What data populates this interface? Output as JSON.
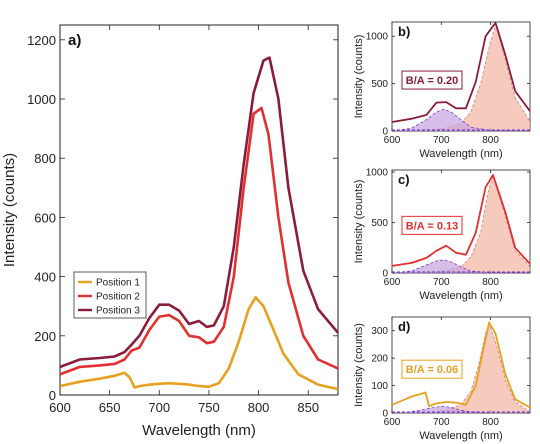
{
  "chart_data": [
    {
      "panel": "a)",
      "type": "line",
      "xlabel": "Wavelength (nm)",
      "ylabel": "Intensity (counts)",
      "xlim": [
        600,
        880
      ],
      "ylim": [
        0,
        1250
      ],
      "xticks": [
        600,
        650,
        700,
        750,
        800,
        850
      ],
      "yticks": [
        0,
        200,
        400,
        600,
        800,
        1000,
        1200
      ],
      "legend": "bottom-left",
      "series": [
        {
          "name": "Position 1",
          "color": "#e8a020",
          "x": [
            600,
            620,
            640,
            655,
            665,
            670,
            675,
            680,
            690,
            700,
            710,
            720,
            730,
            740,
            750,
            760,
            770,
            780,
            790,
            797,
            805,
            815,
            825,
            840,
            860,
            880
          ],
          "y": [
            30,
            45,
            55,
            65,
            75,
            60,
            25,
            30,
            35,
            38,
            40,
            38,
            35,
            30,
            28,
            40,
            90,
            180,
            290,
            330,
            300,
            220,
            140,
            70,
            35,
            20
          ]
        },
        {
          "name": "Position 2",
          "color": "#e03030",
          "x": [
            600,
            620,
            640,
            655,
            665,
            672,
            680,
            690,
            700,
            710,
            720,
            730,
            740,
            748,
            755,
            765,
            775,
            785,
            795,
            803,
            810,
            820,
            830,
            845,
            860,
            880
          ],
          "y": [
            70,
            95,
            100,
            105,
            120,
            150,
            160,
            220,
            265,
            270,
            250,
            200,
            195,
            175,
            180,
            230,
            400,
            700,
            950,
            970,
            880,
            600,
            380,
            200,
            120,
            90
          ]
        },
        {
          "name": "Position 3",
          "color": "#8b1c3a",
          "x": [
            600,
            620,
            640,
            655,
            665,
            672,
            680,
            690,
            700,
            710,
            720,
            730,
            740,
            748,
            755,
            765,
            775,
            785,
            795,
            805,
            811,
            820,
            830,
            845,
            860,
            880
          ],
          "y": [
            95,
            120,
            125,
            130,
            145,
            170,
            200,
            260,
            305,
            305,
            285,
            240,
            250,
            230,
            235,
            300,
            500,
            780,
            1020,
            1130,
            1140,
            1000,
            700,
            420,
            290,
            210
          ]
        }
      ]
    },
    {
      "panel": "b)",
      "type": "line",
      "xlabel": "Wavelength (nm)",
      "ylabel": "Intensity (counts)",
      "xlim": [
        600,
        880
      ],
      "ylim": [
        0,
        1150
      ],
      "xticks": [
        600,
        700,
        800
      ],
      "yticks": [
        0,
        500,
        1000
      ],
      "annotation": "B/A = 0.20",
      "color": "#8b1c3a",
      "series": [
        {
          "role": "data",
          "x": [
            600,
            640,
            670,
            690,
            710,
            730,
            750,
            770,
            790,
            810,
            830,
            850,
            880
          ],
          "y": [
            95,
            130,
            170,
            300,
            305,
            240,
            240,
            520,
            1000,
            1140,
            800,
            420,
            210
          ]
        },
        {
          "role": "fit_peak_A",
          "x": [
            600,
            700,
            740,
            760,
            780,
            800,
            811,
            830,
            850,
            880
          ],
          "y": [
            0,
            20,
            80,
            200,
            500,
            950,
            1120,
            750,
            350,
            100
          ]
        },
        {
          "role": "fit_peak_B",
          "x": [
            600,
            640,
            670,
            690,
            705,
            720,
            740,
            760,
            800,
            880
          ],
          "y": [
            0,
            30,
            120,
            200,
            230,
            200,
            120,
            40,
            5,
            0
          ]
        }
      ]
    },
    {
      "panel": "c)",
      "type": "line",
      "xlabel": "Wavelength (nm)",
      "ylabel": "Intensity (counts)",
      "xlim": [
        600,
        880
      ],
      "ylim": [
        0,
        1020
      ],
      "xticks": [
        600,
        700,
        800
      ],
      "yticks": [
        0,
        500,
        1000
      ],
      "annotation": "B/A = 0.13",
      "color": "#e03030",
      "series": [
        {
          "role": "data",
          "x": [
            600,
            640,
            670,
            690,
            710,
            730,
            750,
            770,
            790,
            805,
            830,
            850,
            880
          ],
          "y": [
            70,
            100,
            150,
            220,
            270,
            200,
            180,
            400,
            850,
            970,
            600,
            250,
            90
          ]
        },
        {
          "role": "fit_peak_A",
          "x": [
            600,
            700,
            740,
            760,
            780,
            795,
            805,
            830,
            850,
            880
          ],
          "y": [
            0,
            15,
            60,
            160,
            400,
            800,
            960,
            560,
            220,
            60
          ]
        },
        {
          "role": "fit_peak_B",
          "x": [
            600,
            640,
            670,
            690,
            705,
            720,
            740,
            760,
            800,
            880
          ],
          "y": [
            0,
            20,
            80,
            120,
            130,
            110,
            60,
            20,
            3,
            0
          ]
        }
      ]
    },
    {
      "panel": "d)",
      "type": "line",
      "xlabel": "Wavelength (nm)",
      "ylabel": "Intensity (counts)",
      "xlim": [
        600,
        880
      ],
      "ylim": [
        0,
        350
      ],
      "xticks": [
        600,
        700,
        800
      ],
      "yticks": [
        0,
        100,
        200,
        300
      ],
      "annotation": "B/A = 0.06",
      "color": "#e8a020",
      "series": [
        {
          "role": "data",
          "x": [
            600,
            620,
            640,
            660,
            668,
            675,
            690,
            710,
            730,
            750,
            770,
            785,
            797,
            810,
            830,
            850,
            880
          ],
          "y": [
            30,
            45,
            60,
            70,
            75,
            25,
            35,
            40,
            38,
            30,
            100,
            230,
            330,
            290,
            140,
            50,
            20
          ]
        },
        {
          "role": "fit_peak_A",
          "x": [
            600,
            700,
            740,
            760,
            775,
            790,
            797,
            810,
            830,
            850,
            880
          ],
          "y": [
            0,
            5,
            30,
            80,
            170,
            290,
            325,
            260,
            120,
            40,
            5
          ]
        },
        {
          "role": "fit_peak_B",
          "x": [
            600,
            640,
            670,
            690,
            705,
            720,
            740,
            760,
            800,
            880
          ],
          "y": [
            0,
            5,
            15,
            22,
            25,
            20,
            10,
            4,
            0,
            0
          ]
        }
      ]
    }
  ]
}
